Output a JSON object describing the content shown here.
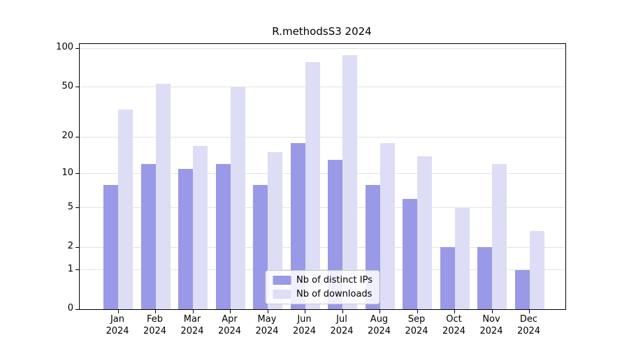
{
  "title": "R.methodsS3 2024",
  "chart_data": {
    "type": "bar",
    "title": "R.methodsS3 2024",
    "scale": "log1p",
    "categories": [
      "Jan",
      "Feb",
      "Mar",
      "Apr",
      "May",
      "Jun",
      "Jul",
      "Aug",
      "Sep",
      "Oct",
      "Nov",
      "Dec"
    ],
    "category_year": "2024",
    "y_ticks": [
      0,
      1,
      2,
      5,
      10,
      20,
      50,
      100
    ],
    "ylim": [
      0,
      108
    ],
    "grid": "horizontal",
    "legend_position": "lower center",
    "series": [
      {
        "name": "Nb of distinct IPs",
        "color": "#9999e8",
        "values": [
          8,
          12,
          11,
          12,
          8,
          18,
          13,
          8,
          6,
          2,
          2,
          1
        ]
      },
      {
        "name": "Nb of downloads",
        "color": "#ddddf6",
        "values": [
          33,
          53,
          17,
          50,
          15,
          78,
          88,
          18,
          14,
          5,
          12,
          3
        ]
      }
    ]
  }
}
